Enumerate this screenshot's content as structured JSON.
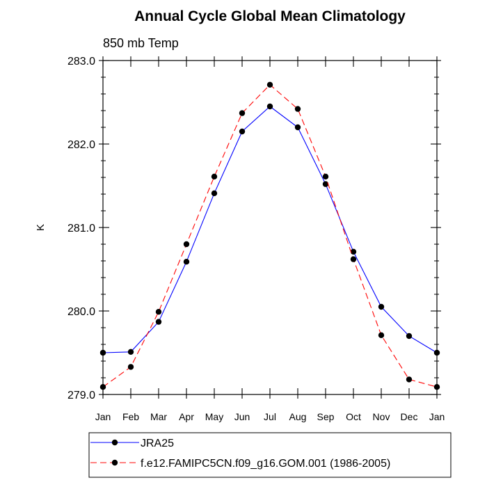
{
  "chart_data": {
    "type": "line",
    "title": "Annual Cycle Global Mean Climatology",
    "subtitle": "850 mb Temp",
    "xlabel": "",
    "ylabel": "K",
    "categories": [
      "Jan",
      "Feb",
      "Mar",
      "Apr",
      "May",
      "Jun",
      "Jul",
      "Aug",
      "Sep",
      "Oct",
      "Nov",
      "Dec",
      "Jan"
    ],
    "ylim": [
      279.0,
      283.0
    ],
    "yticks": [
      "279.0",
      "280.0",
      "281.0",
      "282.0",
      "283.0"
    ],
    "grid": false,
    "legend_position": "bottom",
    "series": [
      {
        "name": "JRA25",
        "color": "#0000ff",
        "dash": "solid",
        "marker": "filled-circle",
        "values": [
          279.5,
          279.51,
          279.87,
          280.59,
          281.41,
          282.15,
          282.45,
          282.2,
          281.52,
          280.71,
          280.05,
          279.7,
          279.5
        ]
      },
      {
        "name": "f.e12.FAMIPC5CN.f09_g16.GOM.001 (1986-2005)",
        "color": "#ff0000",
        "dash": "dashed",
        "marker": "filled-circle",
        "values": [
          279.09,
          279.33,
          279.99,
          280.8,
          281.61,
          282.37,
          282.71,
          282.42,
          281.61,
          280.62,
          279.71,
          279.18,
          279.09
        ]
      }
    ]
  }
}
